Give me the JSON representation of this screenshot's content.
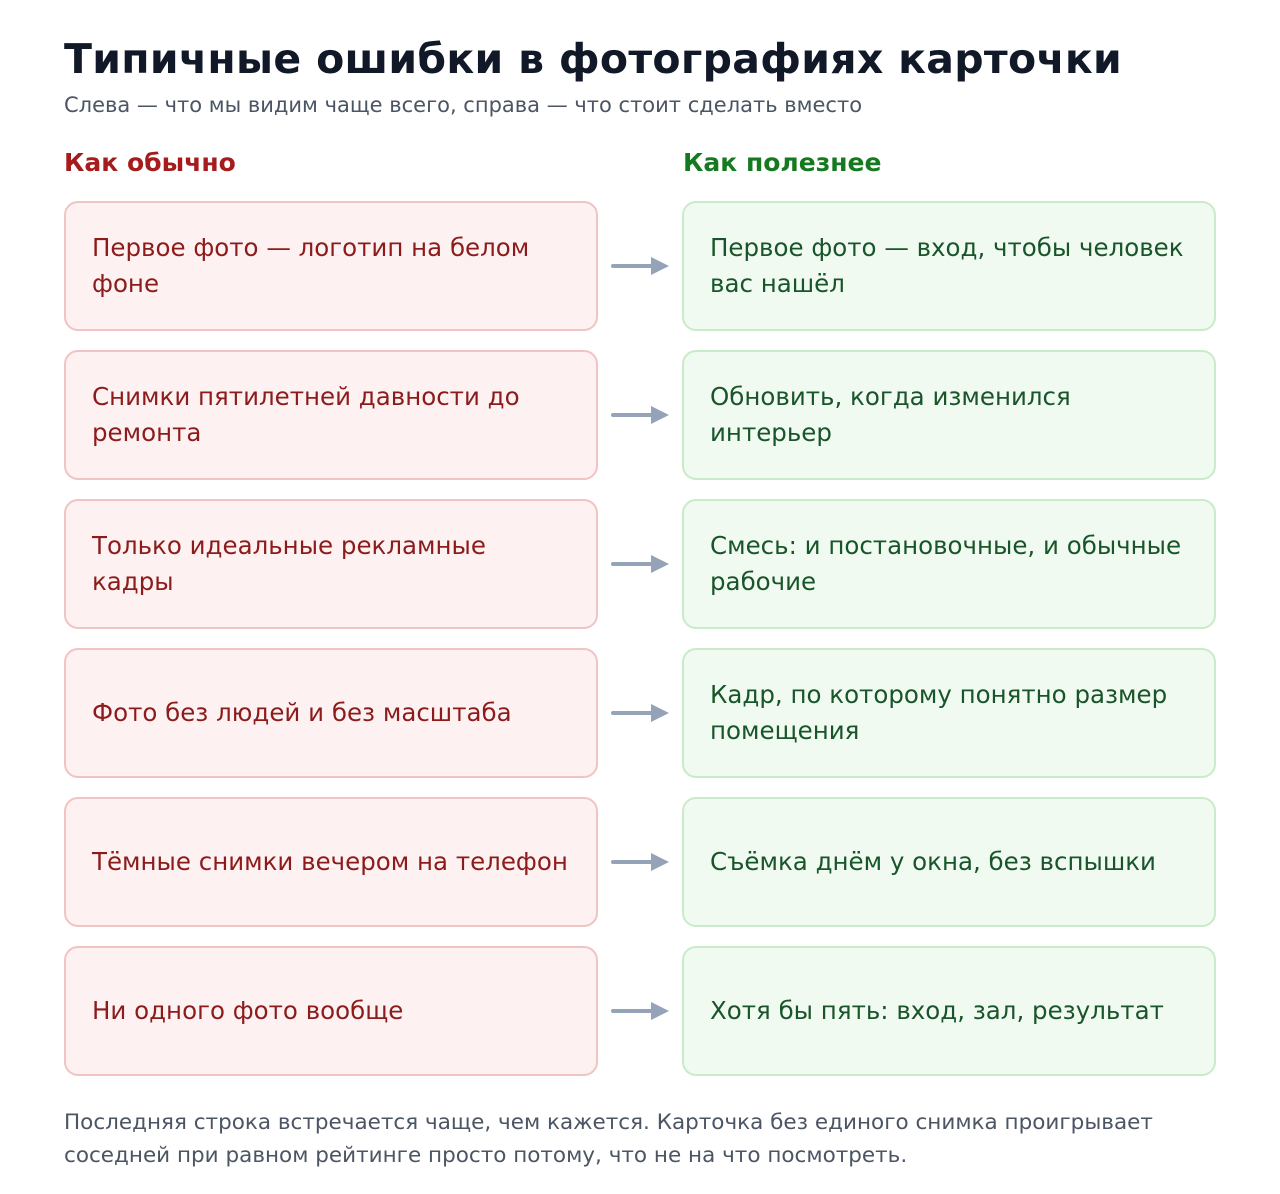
{
  "header": {
    "title": "Типичные ошибки в фотографиях карточки",
    "subtitle": "Слева — что мы видим чаще всего, справа — что стоит сделать вместо"
  },
  "columns": {
    "left_label": "Как обычно",
    "right_label": "Как полезнее"
  },
  "rows": [
    {
      "bad": "Первое фото — логотип на белом фоне",
      "good": "Первое фото — вход, чтобы человек вас нашёл"
    },
    {
      "bad": "Снимки пятилетней давности до ремонта",
      "good": "Обновить, когда изменился интерьер"
    },
    {
      "bad": "Только идеальные рекламные кадры",
      "good": "Смесь: и постановочные, и обычные рабочие"
    },
    {
      "bad": "Фото без людей и без масштаба",
      "good": "Кадр, по которому понятно размер помещения"
    },
    {
      "bad": "Тёмные снимки вечером на телефон",
      "good": "Съёмка днём у окна, без вспышки"
    },
    {
      "bad": "Ни одного фото вообще",
      "good": "Хотя бы пять: вход, зал, результат"
    }
  ],
  "footnote": "Последняя строка встречается чаще, чем кажется. Карточка без единого снимка проигрывает соседней при равном рейтинге просто потому, что не на что посмотреть.",
  "colors": {
    "bad_text": "#8c1c1c",
    "good_text": "#19552a",
    "bad_heading": "#a61b1b",
    "good_heading": "#157a1f",
    "arrow": "#94a3b8"
  },
  "icons": {
    "row_arrow": "arrow-right-icon"
  }
}
